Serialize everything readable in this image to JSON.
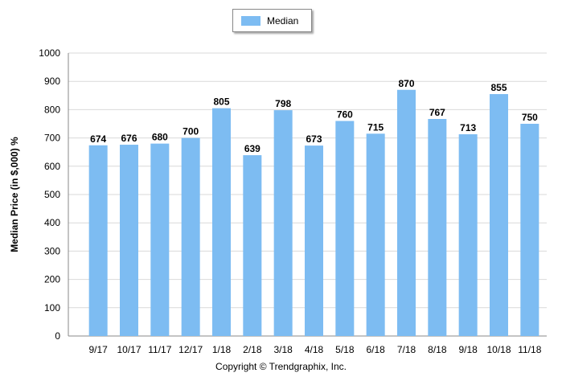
{
  "chart_data": {
    "type": "bar",
    "categories": [
      "9/17",
      "10/17",
      "11/17",
      "12/17",
      "1/18",
      "2/18",
      "3/18",
      "4/18",
      "5/18",
      "6/18",
      "7/18",
      "8/18",
      "9/18",
      "10/18",
      "11/18"
    ],
    "series": [
      {
        "name": "Median",
        "values": [
          674,
          676,
          680,
          700,
          805,
          639,
          798,
          673,
          760,
          715,
          870,
          767,
          713,
          855,
          750
        ]
      }
    ],
    "ylabel": "Median Price (in $,000) %",
    "xlabel": "",
    "ylim": [
      0,
      1000
    ],
    "yticks": [
      0,
      100,
      200,
      300,
      400,
      500,
      600,
      700,
      800,
      900,
      1000
    ],
    "grid": true,
    "legend_position": "top-center",
    "bar_color": "#7dbcf2",
    "data_labels": true
  },
  "footer": {
    "copyright": "Copyright © Trendgraphix, Inc."
  }
}
